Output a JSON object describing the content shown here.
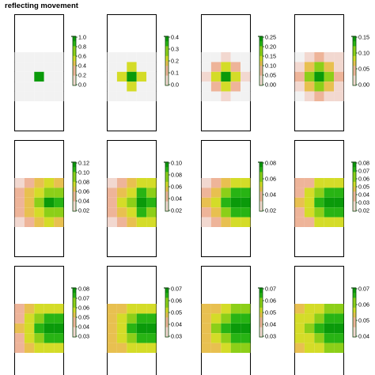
{
  "title": "reflecting movement",
  "colors": {
    "background": "#f2f2f2",
    "scale": [
      "#ffffff",
      "#f2d8d0",
      "#eeb499",
      "#e8c050",
      "#d4dc28",
      "#8ccf18",
      "#28b414",
      "#0a9a0a"
    ],
    "legend_ink": "#114411"
  },
  "chart_data": [
    {
      "type": "heatmap",
      "panel": 1,
      "max": 1.0,
      "ticks": [
        "1.0",
        "0.8",
        "0.6",
        "0.4",
        "0.2",
        "0.0"
      ],
      "grid": [
        [
          0,
          0,
          0,
          0,
          0
        ],
        [
          0,
          0,
          0,
          0,
          0
        ],
        [
          0,
          0,
          1.0,
          0,
          0
        ],
        [
          0,
          0,
          0,
          0,
          0
        ],
        [
          0,
          0,
          0,
          0,
          0
        ]
      ]
    },
    {
      "type": "heatmap",
      "panel": 2,
      "max": 0.4,
      "ticks": [
        "0.4",
        "0.3",
        "0.2",
        "0.1",
        "0.0"
      ],
      "grid": [
        [
          0,
          0,
          0,
          0,
          0
        ],
        [
          0,
          0,
          0.2,
          0,
          0
        ],
        [
          0,
          0.2,
          0.4,
          0.2,
          0
        ],
        [
          0,
          0,
          0.2,
          0,
          0
        ],
        [
          0,
          0,
          0,
          0,
          0
        ]
      ]
    },
    {
      "type": "heatmap",
      "panel": 3,
      "max": 0.25,
      "ticks": [
        "0.25",
        "0.20",
        "0.15",
        "0.10",
        "0.05",
        "0.00"
      ],
      "grid": [
        [
          0,
          0,
          0.04,
          0,
          0
        ],
        [
          0,
          0.08,
          0.16,
          0.08,
          0
        ],
        [
          0.04,
          0.16,
          0.25,
          0.16,
          0.04
        ],
        [
          0,
          0.08,
          0.16,
          0.08,
          0
        ],
        [
          0,
          0,
          0.04,
          0,
          0
        ]
      ]
    },
    {
      "type": "heatmap",
      "panel": 4,
      "max": 0.17,
      "ticks": [
        "0.15",
        "0.10",
        "0.05",
        "0.00"
      ],
      "grid": [
        [
          0,
          0.03,
          0.06,
          0.03,
          0.01
        ],
        [
          0.03,
          0.08,
          0.12,
          0.08,
          0.03
        ],
        [
          0.04,
          0.11,
          0.17,
          0.11,
          0.04
        ],
        [
          0.03,
          0.08,
          0.12,
          0.08,
          0.03
        ],
        [
          0,
          0.03,
          0.06,
          0.03,
          0.01
        ]
      ]
    },
    {
      "type": "heatmap",
      "panel": 5,
      "max": 0.13,
      "ticks": [
        "0.12",
        "0.10",
        "0.08",
        "0.06",
        "0.04",
        "0.02"
      ],
      "grid": [
        [
          0.015,
          0.03,
          0.05,
          0.07,
          0.06
        ],
        [
          0.03,
          0.05,
          0.08,
          0.1,
          0.09
        ],
        [
          0.035,
          0.06,
          0.1,
          0.13,
          0.11
        ],
        [
          0.03,
          0.05,
          0.08,
          0.1,
          0.09
        ],
        [
          0.015,
          0.03,
          0.05,
          0.07,
          0.06
        ]
      ]
    },
    {
      "type": "heatmap",
      "panel": 6,
      "max": 0.11,
      "ticks": [
        "0.10",
        "0.08",
        "0.06",
        "0.04",
        "0.02"
      ],
      "grid": [
        [
          0.015,
          0.03,
          0.05,
          0.06,
          0.06
        ],
        [
          0.03,
          0.05,
          0.07,
          0.09,
          0.085
        ],
        [
          0.035,
          0.055,
          0.085,
          0.11,
          0.1
        ],
        [
          0.03,
          0.05,
          0.07,
          0.09,
          0.085
        ],
        [
          0.015,
          0.03,
          0.05,
          0.06,
          0.06
        ]
      ]
    },
    {
      "type": "heatmap",
      "panel": 7,
      "max": 0.095,
      "ticks": [
        "0.08",
        "0.06",
        "0.04",
        "0.02"
      ],
      "grid": [
        [
          0.015,
          0.03,
          0.045,
          0.055,
          0.055
        ],
        [
          0.03,
          0.045,
          0.065,
          0.08,
          0.08
        ],
        [
          0.035,
          0.055,
          0.08,
          0.095,
          0.09
        ],
        [
          0.03,
          0.045,
          0.065,
          0.08,
          0.08
        ],
        [
          0.015,
          0.03,
          0.045,
          0.055,
          0.055
        ]
      ]
    },
    {
      "type": "heatmap",
      "panel": 8,
      "max": 0.088,
      "ticks": [
        "0.08",
        "0.07",
        "0.06",
        "0.05",
        "0.04",
        "0.03",
        "0.02"
      ],
      "grid": [
        [
          0.02,
          0.03,
          0.045,
          0.05,
          0.05
        ],
        [
          0.03,
          0.045,
          0.06,
          0.075,
          0.075
        ],
        [
          0.035,
          0.05,
          0.07,
          0.088,
          0.085
        ],
        [
          0.03,
          0.045,
          0.06,
          0.075,
          0.075
        ],
        [
          0.02,
          0.03,
          0.045,
          0.05,
          0.05
        ]
      ]
    },
    {
      "type": "heatmap",
      "panel": 9,
      "max": 0.085,
      "ticks": [
        "0.08",
        "0.07",
        "0.06",
        "0.05",
        "0.04",
        "0.03"
      ],
      "grid": [
        [
          0.025,
          0.035,
          0.045,
          0.05,
          0.05
        ],
        [
          0.03,
          0.045,
          0.06,
          0.07,
          0.072
        ],
        [
          0.035,
          0.05,
          0.068,
          0.08,
          0.085
        ],
        [
          0.03,
          0.045,
          0.06,
          0.07,
          0.072
        ],
        [
          0.025,
          0.035,
          0.045,
          0.05,
          0.05
        ]
      ]
    },
    {
      "type": "heatmap",
      "panel": 10,
      "max": 0.078,
      "ticks": [
        "0.07",
        "0.06",
        "0.05",
        "0.04",
        "0.03"
      ],
      "grid": [
        [
          0.028,
          0.035,
          0.045,
          0.05,
          0.05
        ],
        [
          0.032,
          0.045,
          0.058,
          0.068,
          0.068
        ],
        [
          0.036,
          0.05,
          0.065,
          0.076,
          0.078
        ],
        [
          0.032,
          0.045,
          0.058,
          0.068,
          0.068
        ],
        [
          0.028,
          0.035,
          0.045,
          0.05,
          0.05
        ]
      ]
    },
    {
      "type": "heatmap",
      "panel": 11,
      "max": 0.075,
      "ticks": [
        "0.07",
        "0.06",
        "0.05",
        "0.04",
        "0.03"
      ],
      "grid": [
        [
          0.03,
          0.037,
          0.046,
          0.05,
          0.05
        ],
        [
          0.034,
          0.046,
          0.057,
          0.066,
          0.066
        ],
        [
          0.037,
          0.05,
          0.063,
          0.072,
          0.075
        ],
        [
          0.034,
          0.046,
          0.057,
          0.066,
          0.066
        ],
        [
          0.03,
          0.037,
          0.046,
          0.05,
          0.05
        ]
      ]
    },
    {
      "type": "heatmap",
      "panel": 12,
      "max": 0.072,
      "ticks": [
        "0.07",
        "0.06",
        "0.05",
        "0.04"
      ],
      "grid": [
        [
          0.032,
          0.038,
          0.046,
          0.05,
          0.05
        ],
        [
          0.036,
          0.046,
          0.056,
          0.063,
          0.064
        ],
        [
          0.038,
          0.05,
          0.061,
          0.069,
          0.072
        ],
        [
          0.036,
          0.046,
          0.056,
          0.063,
          0.064
        ],
        [
          0.032,
          0.038,
          0.046,
          0.05,
          0.05
        ]
      ]
    }
  ]
}
